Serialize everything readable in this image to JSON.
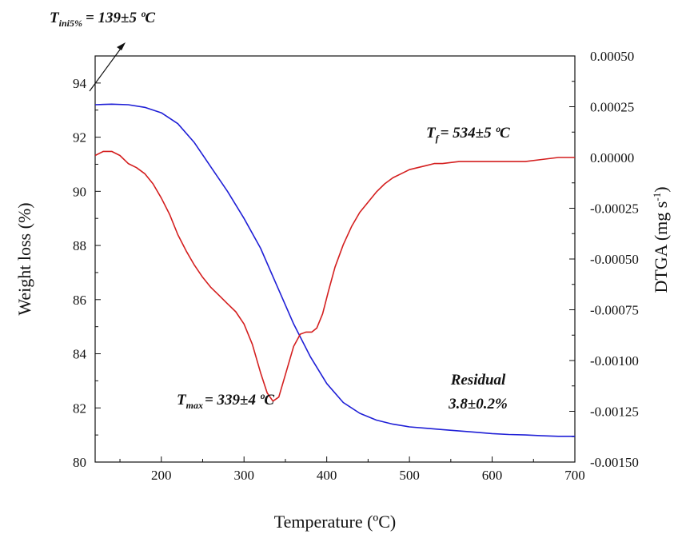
{
  "chart_data": {
    "type": "line",
    "xlabel": "Temperature (ºC)",
    "ylabel": "Weight loss (%)",
    "y2label": "DTGA (mg s",
    "y2label_sup": "-1",
    "y2label_end": ")",
    "xlim": [
      120,
      700
    ],
    "ylim": [
      80,
      95
    ],
    "y2lim": [
      -0.0015,
      0.0005
    ],
    "x_ticks": [
      "200",
      "300",
      "400",
      "500",
      "600",
      "700"
    ],
    "y_ticks": [
      "80",
      "82",
      "84",
      "86",
      "88",
      "90",
      "92",
      "94"
    ],
    "y2_ticks": [
      "0.00050",
      "0.00025",
      "0.00000",
      "-0.00025",
      "-0.00050",
      "-0.00075",
      "-0.00100",
      "-0.00125",
      "-0.00150"
    ],
    "series": [
      {
        "axis": "left",
        "color": "#1f1fd6",
        "x": [
          120,
          140,
          160,
          180,
          200,
          220,
          240,
          260,
          280,
          300,
          320,
          340,
          360,
          380,
          400,
          420,
          440,
          460,
          480,
          500,
          520,
          540,
          560,
          580,
          600,
          620,
          640,
          660,
          680,
          700
        ],
        "values": [
          93.2,
          93.22,
          93.2,
          93.1,
          92.9,
          92.5,
          91.8,
          90.9,
          90.0,
          89.0,
          87.9,
          86.5,
          85.1,
          83.9,
          82.9,
          82.2,
          81.8,
          81.55,
          81.4,
          81.3,
          81.25,
          81.2,
          81.15,
          81.1,
          81.05,
          81.02,
          81.0,
          80.97,
          80.95,
          80.95
        ]
      },
      {
        "axis": "right",
        "color": "#d41f1f",
        "x": [
          120,
          130,
          140,
          150,
          160,
          170,
          180,
          190,
          200,
          210,
          220,
          230,
          240,
          250,
          260,
          270,
          280,
          290,
          300,
          310,
          320,
          328,
          335,
          342,
          350,
          360,
          368,
          375,
          382,
          388,
          395,
          402,
          410,
          420,
          430,
          440,
          450,
          460,
          470,
          480,
          490,
          500,
          510,
          520,
          530,
          540,
          560,
          580,
          600,
          620,
          640,
          660,
          680,
          700
        ],
        "values": [
          1e-05,
          3e-05,
          3e-05,
          1e-05,
          -3e-05,
          -5e-05,
          -8e-05,
          -0.00013,
          -0.0002,
          -0.00028,
          -0.00038,
          -0.00046,
          -0.00053,
          -0.00059,
          -0.00064,
          -0.00068,
          -0.00072,
          -0.00076,
          -0.00082,
          -0.00092,
          -0.00106,
          -0.00116,
          -0.0012,
          -0.00118,
          -0.00107,
          -0.00093,
          -0.00087,
          -0.00086,
          -0.00086,
          -0.00084,
          -0.00077,
          -0.00066,
          -0.00054,
          -0.00043,
          -0.00034,
          -0.00027,
          -0.00022,
          -0.00017,
          -0.00013,
          -0.0001,
          -8e-05,
          -6e-05,
          -5e-05,
          -4e-05,
          -3e-05,
          -3e-05,
          -2e-05,
          -2e-05,
          -2e-05,
          -2e-05,
          -2e-05,
          -1e-05,
          0.0,
          0.0
        ]
      }
    ],
    "annotations": {
      "tini": {
        "main": "T",
        "sub": "ini5%",
        "rest": "= 139±5 ºC"
      },
      "tf": {
        "main": "T",
        "sub": "f",
        "rest": "= 534±5 ºC"
      },
      "tmax": {
        "main": "T",
        "sub": "max",
        "rest": "= 339±4 ºC"
      },
      "residual_label": "Residual",
      "residual_value": "3.8±0.2%"
    },
    "grid": false
  }
}
